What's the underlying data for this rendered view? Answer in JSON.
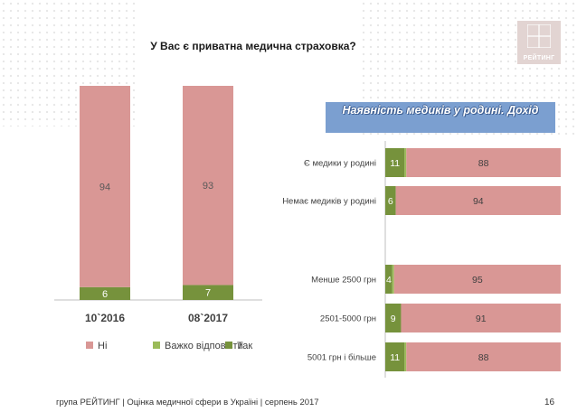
{
  "title": "У Вас є приватна медична страховка?",
  "logo_text": "РЕЙТИНГ",
  "banner_text": "Наявність медиків у родині. Дохід",
  "footer": "група РЕЙТИНГ  |  Оцінка медичної сфери в Україні  |  серпень 2017",
  "page_number": "16",
  "colors": {
    "no": "#d99795",
    "hard": "#9bbb59",
    "yes": "#76923c"
  },
  "chart_data": [
    {
      "type": "bar",
      "stacked": true,
      "orientation": "vertical",
      "categories": [
        "10`2016",
        "08`2017"
      ],
      "series": [
        {
          "name": "Так",
          "values": [
            6,
            7
          ]
        },
        {
          "name": "Важко відповісти",
          "values": [
            0,
            0
          ]
        },
        {
          "name": "Ні",
          "values": [
            94,
            93
          ]
        }
      ],
      "legend": [
        "Ні",
        "Важко відповісти",
        "Так"
      ],
      "legend_position": "bottom",
      "ylim": [
        0,
        100
      ]
    },
    {
      "type": "bar",
      "stacked": true,
      "orientation": "horizontal",
      "title": "Наявність медиків у родині. Дохід",
      "categories": [
        "Є медики у родині",
        "Немає медиків у родині",
        "",
        "Менше 2500 грн",
        "2501-5000 грн",
        "5001 грн і більше"
      ],
      "series": [
        {
          "name": "Так",
          "values": [
            11,
            6,
            null,
            4,
            9,
            11
          ]
        },
        {
          "name": "Важко відповісти",
          "values": [
            1,
            0,
            null,
            1,
            0,
            1
          ]
        },
        {
          "name": "Ні",
          "values": [
            88,
            94,
            null,
            95,
            91,
            88
          ]
        }
      ],
      "xlim": [
        0,
        100
      ]
    }
  ]
}
